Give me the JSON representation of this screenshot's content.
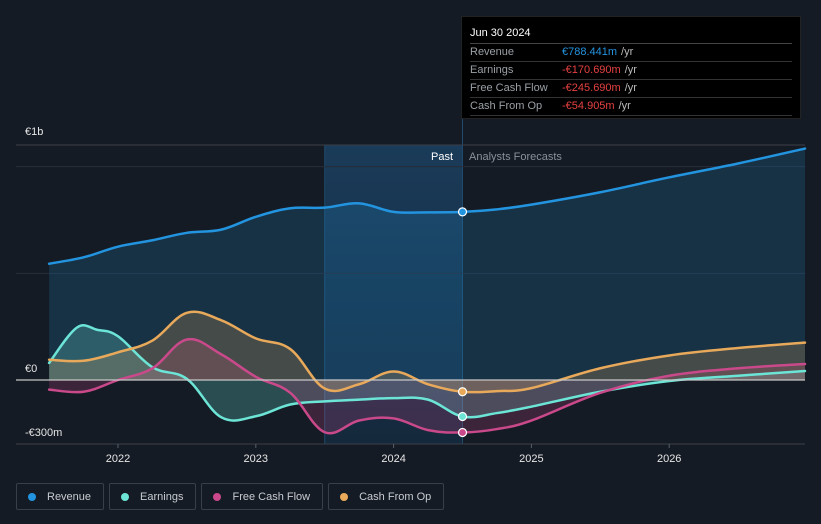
{
  "tooltip": {
    "date": "Jun 30 2024",
    "rows": [
      {
        "label": "Revenue",
        "value": "€788.441m",
        "unit": "/yr",
        "color": "#2394df"
      },
      {
        "label": "Earnings",
        "value": "-€170.690m",
        "unit": "/yr",
        "color": "#e64141"
      },
      {
        "label": "Free Cash Flow",
        "value": "-€245.690m",
        "unit": "/yr",
        "color": "#e64141"
      },
      {
        "label": "Cash From Op",
        "value": "-€54.905m",
        "unit": "/yr",
        "color": "#e64141"
      }
    ]
  },
  "sections": {
    "past": "Past",
    "forecast": "Analysts Forecasts"
  },
  "legend": [
    {
      "label": "Revenue",
      "color": "#2394df"
    },
    {
      "label": "Earnings",
      "color": "#6ce5d7"
    },
    {
      "label": "Free Cash Flow",
      "color": "#c9498a"
    },
    {
      "label": "Cash From Op",
      "color": "#e8a95b"
    }
  ],
  "chart_data": {
    "type": "line",
    "title": "",
    "xlabel": "",
    "ylabel": "",
    "y_unit": "€m",
    "ylim": [
      -300,
      1100
    ],
    "y_ticks": [
      {
        "value": 1000,
        "label": "€1b"
      },
      {
        "value": 0,
        "label": "€0"
      },
      {
        "value": -300,
        "label": "-€300m"
      }
    ],
    "x_ticks": [
      {
        "value": 2022.0,
        "label": "2022"
      },
      {
        "value": 2023.0,
        "label": "2023"
      },
      {
        "value": 2024.0,
        "label": "2024"
      },
      {
        "value": 2025.0,
        "label": "2025"
      },
      {
        "value": 2026.0,
        "label": "2026"
      }
    ],
    "xlim": [
      2021.25,
      2027.0
    ],
    "past_region": [
      2023.5,
      2024.5
    ],
    "current_point": 2024.5,
    "grid": true,
    "legend_position": "bottom-left",
    "series": [
      {
        "name": "Revenue",
        "color": "#2394df",
        "x": [
          2021.5,
          2021.75,
          2022.0,
          2022.25,
          2022.5,
          2022.75,
          2023.0,
          2023.25,
          2023.5,
          2023.75,
          2024.0,
          2024.25,
          2024.5,
          2024.75,
          2025.0,
          2025.5,
          2026.0,
          2026.5,
          2027.0
        ],
        "y": [
          545,
          575,
          625,
          655,
          690,
          705,
          765,
          805,
          808,
          828,
          788,
          786,
          788,
          800,
          822,
          880,
          950,
          1015,
          1085
        ]
      },
      {
        "name": "Earnings",
        "color": "#6ce5d7",
        "x": [
          2021.5,
          2021.7,
          2021.85,
          2022.0,
          2022.25,
          2022.5,
          2022.75,
          2023.0,
          2023.25,
          2023.5,
          2023.75,
          2024.0,
          2024.25,
          2024.5,
          2024.75,
          2025.0,
          2025.5,
          2026.0,
          2026.5,
          2027.0
        ],
        "y": [
          80,
          245,
          235,
          205,
          60,
          5,
          -175,
          -170,
          -115,
          -100,
          -92,
          -85,
          -92,
          -171,
          -155,
          -125,
          -55,
          -5,
          20,
          42
        ]
      },
      {
        "name": "Free Cash Flow",
        "color": "#c9498a",
        "x": [
          2021.5,
          2021.75,
          2022.0,
          2022.25,
          2022.5,
          2022.75,
          2023.0,
          2023.25,
          2023.5,
          2023.75,
          2024.0,
          2024.25,
          2024.5,
          2024.75,
          2025.0,
          2025.5,
          2026.0,
          2026.5,
          2027.0
        ],
        "y": [
          -45,
          -55,
          0,
          55,
          190,
          120,
          15,
          -60,
          -245,
          -190,
          -180,
          -235,
          -246,
          -230,
          -190,
          -60,
          20,
          55,
          75
        ]
      },
      {
        "name": "Cash From Op",
        "color": "#e8a95b",
        "x": [
          2021.5,
          2021.75,
          2022.0,
          2022.25,
          2022.5,
          2022.75,
          2023.0,
          2023.25,
          2023.5,
          2023.75,
          2024.0,
          2024.25,
          2024.5,
          2024.75,
          2025.0,
          2025.5,
          2026.0,
          2026.5,
          2027.0
        ],
        "y": [
          95,
          90,
          130,
          185,
          315,
          280,
          195,
          145,
          -40,
          -20,
          40,
          -20,
          -55,
          -52,
          -38,
          55,
          115,
          150,
          175
        ]
      }
    ]
  }
}
